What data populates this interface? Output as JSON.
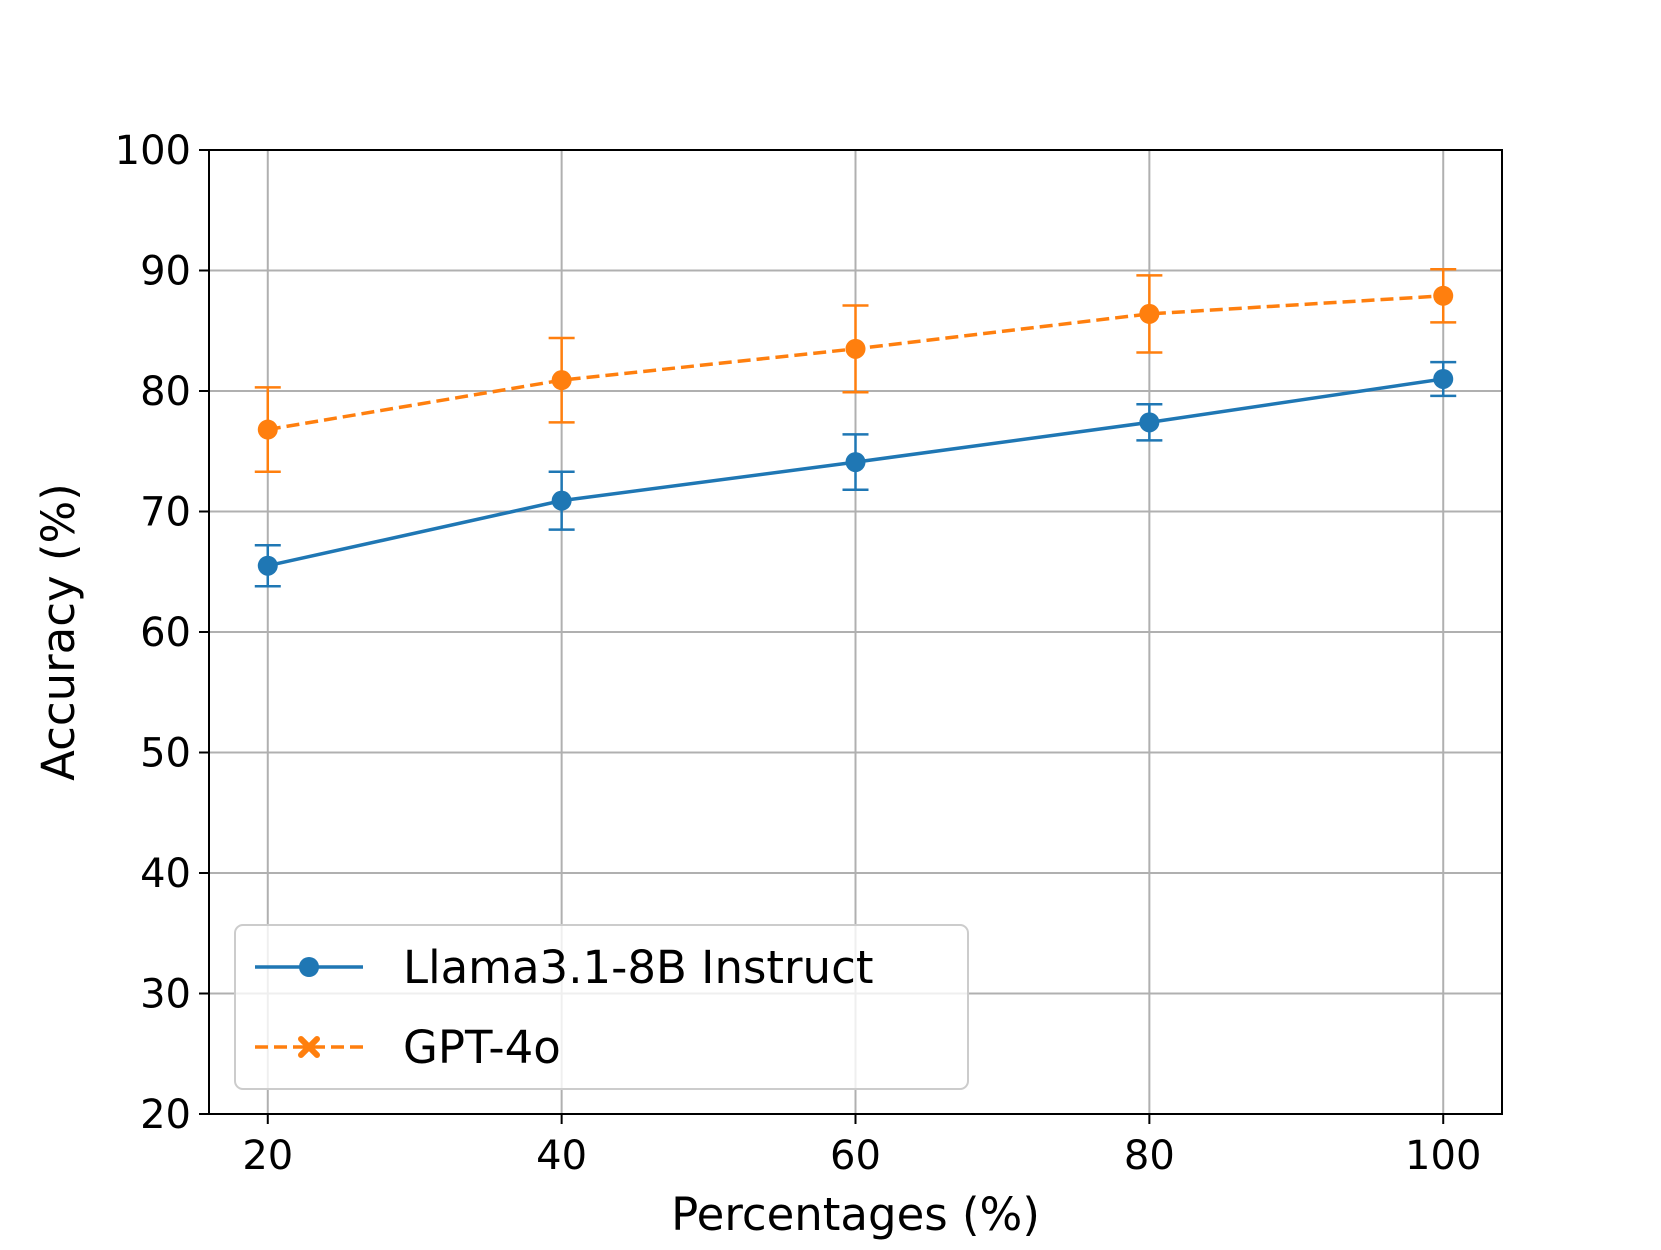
{
  "chart_data": {
    "type": "line",
    "title": "",
    "xlabel": "Percentages (%)",
    "ylabel": "Accuracy (%)",
    "x": [
      20,
      40,
      60,
      80,
      100
    ],
    "xlim": [
      16,
      104
    ],
    "ylim": [
      20,
      100
    ],
    "xticks": [
      20,
      40,
      60,
      80,
      100
    ],
    "xtick_labels": [
      "20",
      "40",
      "60",
      "80",
      "100"
    ],
    "yticks": [
      20,
      30,
      40,
      50,
      60,
      70,
      80,
      90,
      100
    ],
    "ytick_labels": [
      "20",
      "30",
      "40",
      "50",
      "60",
      "70",
      "80",
      "90",
      "100"
    ],
    "grid": true,
    "legend_position": "lower-left",
    "series": [
      {
        "name": "Llama3.1-8B Instruct",
        "color": "#1f77b4",
        "linestyle": "solid",
        "marker": "circle",
        "values": [
          65.5,
          70.9,
          74.1,
          77.4,
          81.0
        ],
        "error": [
          1.7,
          2.4,
          2.3,
          1.5,
          1.4
        ]
      },
      {
        "name": "GPT-4o",
        "color": "#ff7f0e",
        "linestyle": "dashed",
        "marker": "x",
        "values": [
          76.8,
          80.9,
          83.5,
          86.4,
          87.9
        ],
        "error": [
          3.5,
          3.5,
          3.6,
          3.2,
          2.2
        ]
      }
    ]
  }
}
